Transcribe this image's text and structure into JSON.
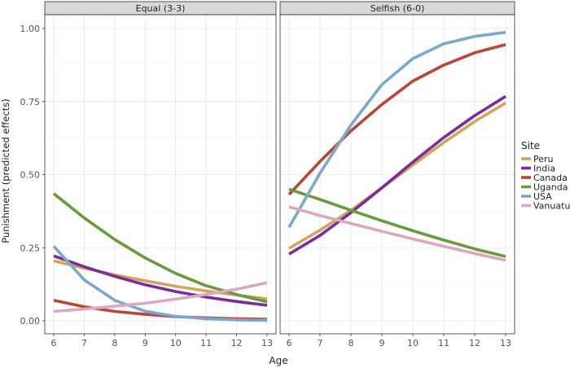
{
  "chart_data": {
    "type": "line",
    "ylabel": "Punishment (predicted effects)",
    "xlabel": "Age",
    "x": [
      6,
      7,
      8,
      9,
      10,
      11,
      12,
      13
    ],
    "xlim": [
      6,
      13
    ],
    "ylim": [
      0,
      1
    ],
    "y_ticks": [
      "0.00",
      "0.25",
      "0.50",
      "0.75",
      "1.00"
    ],
    "grid": true,
    "legend": {
      "title": "Site",
      "placement": "right",
      "entries": [
        "Peru",
        "India",
        "Canada",
        "Uganda",
        "USA",
        "Vanuatu"
      ]
    },
    "colors": {
      "Peru": "#D1A55B",
      "India": "#7A2E99",
      "Canada": "#B8473A",
      "Uganda": "#6B9A3A",
      "USA": "#7DA8C8",
      "Vanuatu": "#D8A9C0"
    },
    "panels": [
      {
        "title": "Equal (3-3)",
        "series": [
          {
            "name": "Peru",
            "values": [
              0.205,
              0.18,
              0.157,
              0.137,
              0.118,
              0.102,
              0.088,
              0.075
            ]
          },
          {
            "name": "India",
            "values": [
              0.222,
              0.185,
              0.152,
              0.123,
              0.1,
              0.081,
              0.066,
              0.053
            ]
          },
          {
            "name": "Canada",
            "values": [
              0.07,
              0.048,
              0.032,
              0.022,
              0.014,
              0.01,
              0.007,
              0.005
            ]
          },
          {
            "name": "Uganda",
            "values": [
              0.435,
              0.352,
              0.278,
              0.215,
              0.162,
              0.12,
              0.09,
              0.065
            ]
          },
          {
            "name": "USA",
            "values": [
              0.255,
              0.14,
              0.07,
              0.033,
              0.015,
              0.007,
              0.003,
              0.001
            ]
          },
          {
            "name": "Vanuatu",
            "values": [
              0.032,
              0.04,
              0.05,
              0.06,
              0.074,
              0.09,
              0.108,
              0.13
            ]
          }
        ]
      },
      {
        "title": "Selfish (6-0)",
        "series": [
          {
            "name": "Peru",
            "values": [
              0.248,
              0.31,
              0.378,
              0.455,
              0.533,
              0.61,
              0.682,
              0.745
            ]
          },
          {
            "name": "India",
            "values": [
              0.228,
              0.292,
              0.37,
              0.455,
              0.543,
              0.627,
              0.702,
              0.768
            ]
          },
          {
            "name": "Canada",
            "values": [
              0.432,
              0.545,
              0.65,
              0.74,
              0.82,
              0.875,
              0.917,
              0.945
            ]
          },
          {
            "name": "Uganda",
            "values": [
              0.45,
              0.415,
              0.378,
              0.342,
              0.308,
              0.276,
              0.246,
              0.22
            ]
          },
          {
            "name": "USA",
            "values": [
              0.32,
              0.505,
              0.67,
              0.808,
              0.897,
              0.948,
              0.973,
              0.987
            ]
          },
          {
            "name": "Vanuatu",
            "values": [
              0.39,
              0.36,
              0.333,
              0.306,
              0.28,
              0.255,
              0.23,
              0.207
            ]
          }
        ]
      }
    ]
  }
}
